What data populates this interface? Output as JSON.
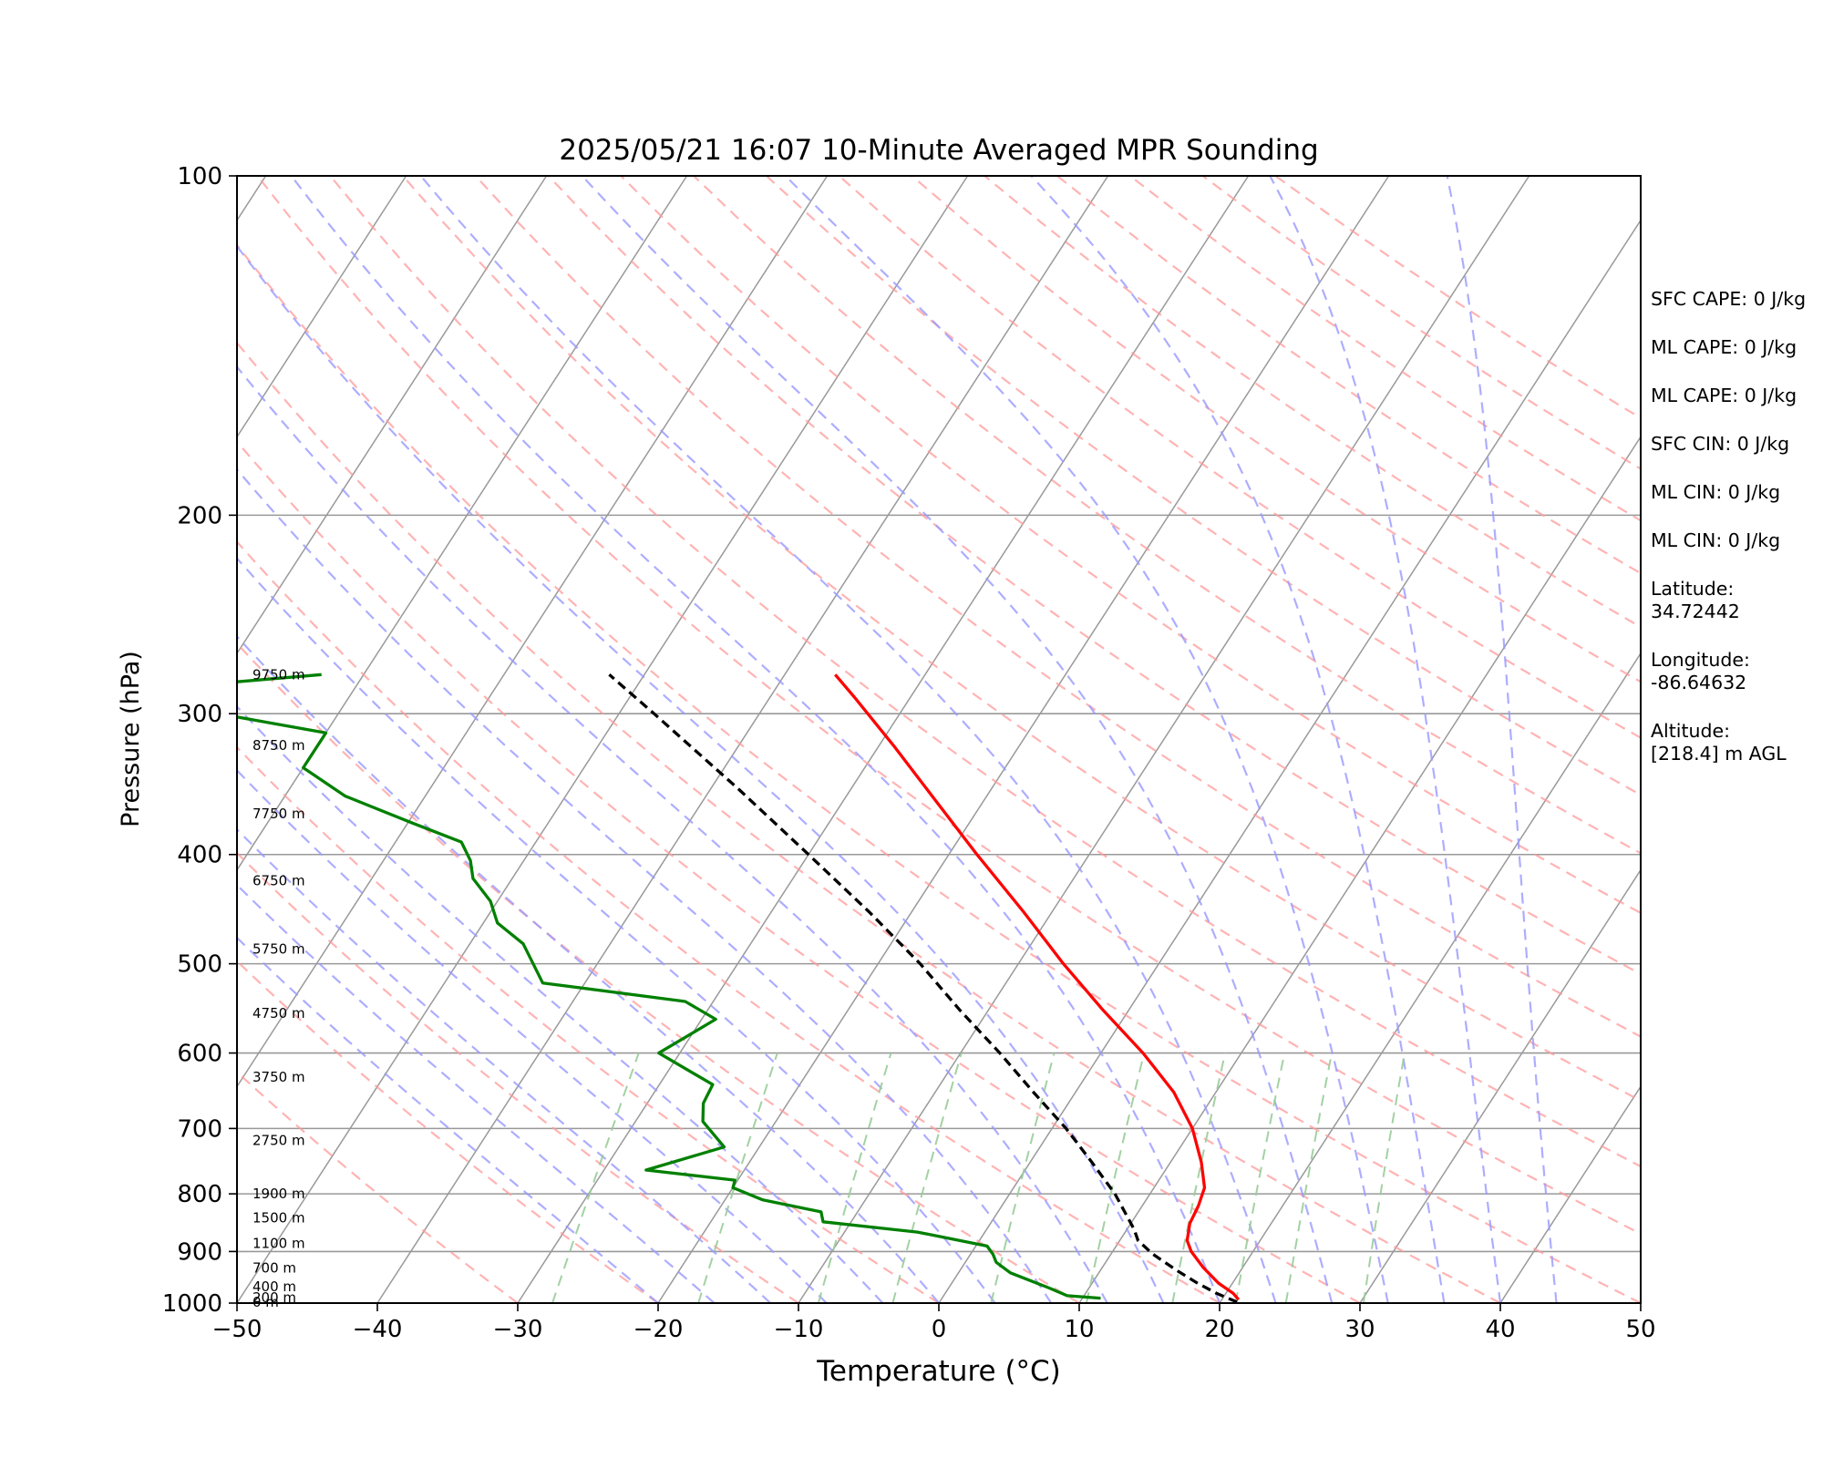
{
  "chart_data": {
    "type": "line",
    "title": "2025/05/21 16:07 10-Minute Averaged MPR Sounding",
    "xlabel": "Temperature (°C)",
    "ylabel": "Pressure (hPa)",
    "xlim": [
      -50,
      50
    ],
    "ylim": [
      1000,
      100
    ],
    "y_scale": "log",
    "grid": true,
    "skew": true,
    "x_ticks": [
      "−50",
      "−40",
      "−30",
      "−20",
      "−10",
      "0",
      "10",
      "20",
      "30",
      "40",
      "50"
    ],
    "y_ticks": [
      "100",
      "200",
      "300",
      "400",
      "500",
      "600",
      "700",
      "800",
      "900",
      "1000"
    ],
    "height_labels": [
      {
        "p": 277,
        "label": "9750 m"
      },
      {
        "p": 320,
        "label": "8750 m"
      },
      {
        "p": 368,
        "label": "7750 m"
      },
      {
        "p": 422,
        "label": "6750 m"
      },
      {
        "p": 485,
        "label": "5750 m"
      },
      {
        "p": 553,
        "label": "4750 m"
      },
      {
        "p": 630,
        "label": "3750 m"
      },
      {
        "p": 717,
        "label": "2750 m"
      },
      {
        "p": 800,
        "label": "1900 m"
      },
      {
        "p": 840,
        "label": "1500 m"
      },
      {
        "p": 885,
        "label": "1100 m"
      },
      {
        "p": 931,
        "label": "700 m"
      },
      {
        "p": 967,
        "label": "400 m"
      },
      {
        "p": 989,
        "label": "200 m"
      },
      {
        "p": 1010,
        "label": "0 m"
      }
    ],
    "series": [
      {
        "kind": "temperature",
        "color": "#ff0000",
        "points": [
          {
            "p": 993,
            "t": 21.2
          },
          {
            "p": 980,
            "t": 20.5
          },
          {
            "p": 960,
            "t": 19.0
          },
          {
            "p": 930,
            "t": 17.2
          },
          {
            "p": 900,
            "t": 15.6
          },
          {
            "p": 880,
            "t": 14.8
          },
          {
            "p": 850,
            "t": 14.2
          },
          {
            "p": 820,
            "t": 14.0
          },
          {
            "p": 790,
            "t": 13.6
          },
          {
            "p": 750,
            "t": 12.2
          },
          {
            "p": 700,
            "t": 10.0
          },
          {
            "p": 650,
            "t": 7.0
          },
          {
            "p": 600,
            "t": 3.0
          },
          {
            "p": 550,
            "t": -1.8
          },
          {
            "p": 500,
            "t": -6.8
          },
          {
            "p": 450,
            "t": -12.0
          },
          {
            "p": 400,
            "t": -18.0
          },
          {
            "p": 360,
            "t": -23.2
          },
          {
            "p": 320,
            "t": -29.0
          },
          {
            "p": 290,
            "t": -34.0
          },
          {
            "p": 277,
            "t": -36.4
          }
        ]
      },
      {
        "kind": "dewpoint",
        "color": "#008000",
        "points": [
          {
            "p": 990,
            "t": 11.3
          },
          {
            "p": 985,
            "t": 8.8
          },
          {
            "p": 970,
            "t": 7.2
          },
          {
            "p": 940,
            "t": 3.7
          },
          {
            "p": 920,
            "t": 2.2
          },
          {
            "p": 905,
            "t": 1.6
          },
          {
            "p": 890,
            "t": 0.8
          },
          {
            "p": 865,
            "t": -4.8
          },
          {
            "p": 847,
            "t": -12.0
          },
          {
            "p": 830,
            "t": -12.6
          },
          {
            "p": 810,
            "t": -17.3
          },
          {
            "p": 790,
            "t": -20.0
          },
          {
            "p": 778,
            "t": -20.2
          },
          {
            "p": 762,
            "t": -27.0
          },
          {
            "p": 727,
            "t": -22.5
          },
          {
            "p": 690,
            "t": -25.2
          },
          {
            "p": 665,
            "t": -26.0
          },
          {
            "p": 640,
            "t": -26.2
          },
          {
            "p": 600,
            "t": -31.5
          },
          {
            "p": 560,
            "t": -29.0
          },
          {
            "p": 540,
            "t": -32.0
          },
          {
            "p": 520,
            "t": -43.0
          },
          {
            "p": 480,
            "t": -46.2
          },
          {
            "p": 460,
            "t": -49.0
          },
          {
            "p": 440,
            "t": -50.5
          },
          {
            "p": 420,
            "t": -52.8
          },
          {
            "p": 405,
            "t": -53.8
          },
          {
            "p": 390,
            "t": -55.3
          },
          {
            "p": 375,
            "t": -59.7
          },
          {
            "p": 355,
            "t": -65.7
          },
          {
            "p": 335,
            "t": -70.0
          },
          {
            "p": 312,
            "t": -70.0
          },
          {
            "p": 300,
            "t": -78.5
          },
          {
            "p": 285,
            "t": -84.0
          },
          {
            "p": 277,
            "t": -73.0
          }
        ]
      },
      {
        "kind": "parcel",
        "color": "#000000",
        "dashed": true,
        "points": [
          {
            "p": 998,
            "t": 21.2
          },
          {
            "p": 980,
            "t": 19.3
          },
          {
            "p": 960,
            "t": 17.5
          },
          {
            "p": 935,
            "t": 15.4
          },
          {
            "p": 905,
            "t": 13.0
          },
          {
            "p": 880,
            "t": 11.3
          },
          {
            "p": 860,
            "t": 10.5
          },
          {
            "p": 800,
            "t": 7.5
          },
          {
            "p": 750,
            "t": 4.4
          },
          {
            "p": 700,
            "t": 1.0
          },
          {
            "p": 650,
            "t": -3.0
          },
          {
            "p": 600,
            "t": -7.2
          },
          {
            "p": 550,
            "t": -12.0
          },
          {
            "p": 500,
            "t": -17.0
          },
          {
            "p": 450,
            "t": -23.0
          },
          {
            "p": 400,
            "t": -30.0
          },
          {
            "p": 350,
            "t": -38.0
          },
          {
            "p": 300,
            "t": -47.5
          },
          {
            "p": 277,
            "t": -52.5
          }
        ]
      }
    ],
    "background_lines": {
      "dry_adiabat_color": "#ff9999",
      "moist_adiabat_color": "#9999ff",
      "mixing_ratio_color": "#99cc99",
      "isotherm_color": "#999999"
    }
  },
  "side_panel": [
    "SFC CAPE: 0 J/kg",
    "ML CAPE: 0 J/kg",
    "ML CAPE: 0 J/kg",
    "SFC CIN: 0 J/kg",
    "ML CIN: 0 J/kg",
    "ML CIN: 0 J/kg",
    "Latitude:\n34.72442",
    "Longitude:\n-86.64632",
    "Altitude:\n[218.4] m AGL"
  ]
}
